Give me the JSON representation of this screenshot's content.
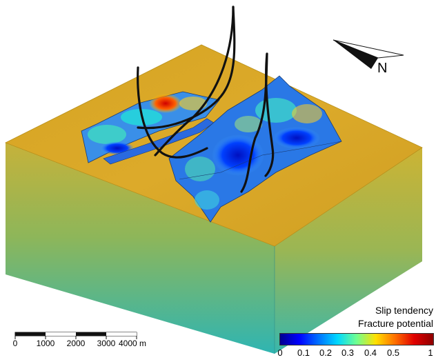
{
  "legend": {
    "title_line1": "Slip tendency",
    "title_line2": "Fracture potential",
    "colormap": [
      "#00008f",
      "#0000ff",
      "#0070ff",
      "#00d8ff",
      "#70ff90",
      "#ffe000",
      "#ff7000",
      "#e00000",
      "#8f0000"
    ],
    "ticks": [
      "0",
      "0.1",
      "0.2",
      "0.3",
      "0.4",
      "0.5",
      "1"
    ]
  },
  "north_arrow": {
    "label": "N"
  },
  "scale_bar": {
    "ticks": [
      "0",
      "1000",
      "2000",
      "3000",
      "4000 m"
    ]
  },
  "colors": {
    "top_surface": "#d7a526",
    "side_top": "#c9b23a",
    "side_bottom": "#34b6b0",
    "well": "#111111"
  },
  "icons": {
    "north": "north-arrow-icon"
  }
}
